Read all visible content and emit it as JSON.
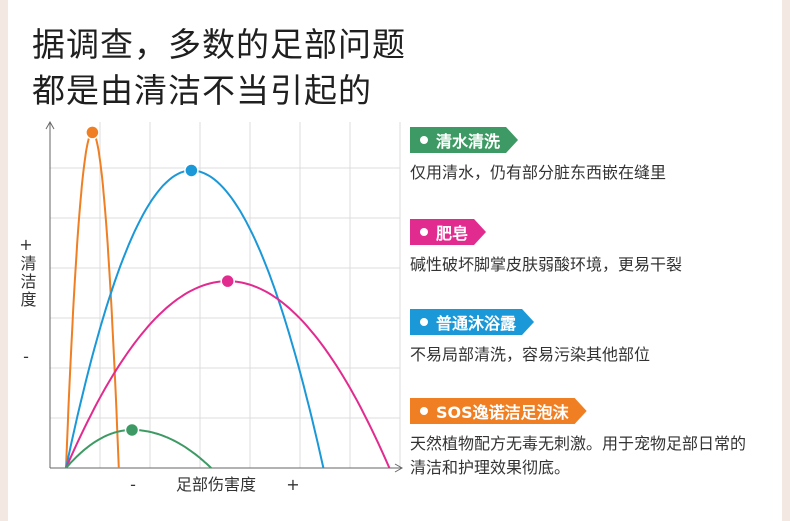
{
  "headline": {
    "line1": "据调查，多数的足部问题",
    "line2": "都是由清洁不当引起的"
  },
  "legend": [
    {
      "label": "清水清洗",
      "desc": "仅用清水，仍有部分脏东西嵌在缝里",
      "color": "#3e9a64"
    },
    {
      "label": "肥皂",
      "desc": "碱性破坏脚掌皮肤弱酸环境，更易干裂",
      "color": "#e22b8f"
    },
    {
      "label": "普通沐浴露",
      "desc": "不易局部清洗，容易污染其他部位",
      "color": "#1a98d8"
    },
    {
      "label": "SOS逸诺洁足泡沫",
      "desc": "天然植物配方无毒无刺激。用于宠物足部日常的清洁和护理效果彻底。",
      "color": "#ef7f22"
    }
  ],
  "chart_data": {
    "type": "line",
    "xlabel": "足部伤害度",
    "ylabel": "清洁度",
    "x_axis_marks": {
      "low": "-",
      "high": "+"
    },
    "y_axis_marks": {
      "high": "+",
      "low": "-"
    },
    "xlim": [
      0,
      10
    ],
    "ylim": [
      0,
      10
    ],
    "grid": true,
    "series": [
      {
        "name": "SOS逸诺洁足泡沫",
        "color": "#ef7f22",
        "peak": [
          0.8,
          9.7
        ],
        "x_end": 1.6
      },
      {
        "name": "普通沐浴露",
        "color": "#1a98d8",
        "peak": [
          3.8,
          8.6
        ],
        "x_end": 7.8
      },
      {
        "name": "肥皂",
        "color": "#e22b8f",
        "peak": [
          4.9,
          5.4
        ],
        "x_end": 9.8
      },
      {
        "name": "清水清洗",
        "color": "#3e9a64",
        "peak": [
          2.0,
          1.1
        ],
        "x_end": 4.4
      }
    ]
  }
}
